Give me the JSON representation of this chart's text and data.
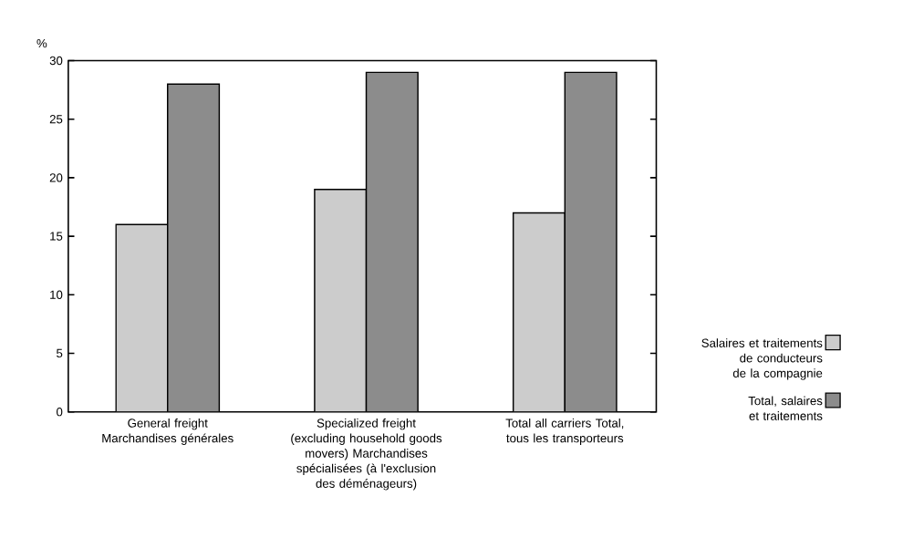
{
  "chart_data": {
    "type": "bar",
    "ylabel": "%",
    "categories": [
      "General freight Marchandises générales",
      "Specialized freight (excluding household goods movers) Marchandises spécialisées (à l'exclusion des déménageurs)",
      "Total all carriers Total, tous les transporteurs"
    ],
    "series": [
      {
        "name": "Salaires et traitements de conducteurs de la compagnie",
        "color": "#cccccc",
        "values": [
          16,
          19,
          17
        ]
      },
      {
        "name": "Total, salaires et traitements",
        "color": "#8c8c8c",
        "values": [
          28,
          29,
          29
        ]
      }
    ],
    "ylim": [
      0,
      30
    ],
    "yticks": [
      0,
      5,
      10,
      15,
      20,
      25,
      30
    ],
    "grid": false,
    "legend": "bottom right"
  }
}
